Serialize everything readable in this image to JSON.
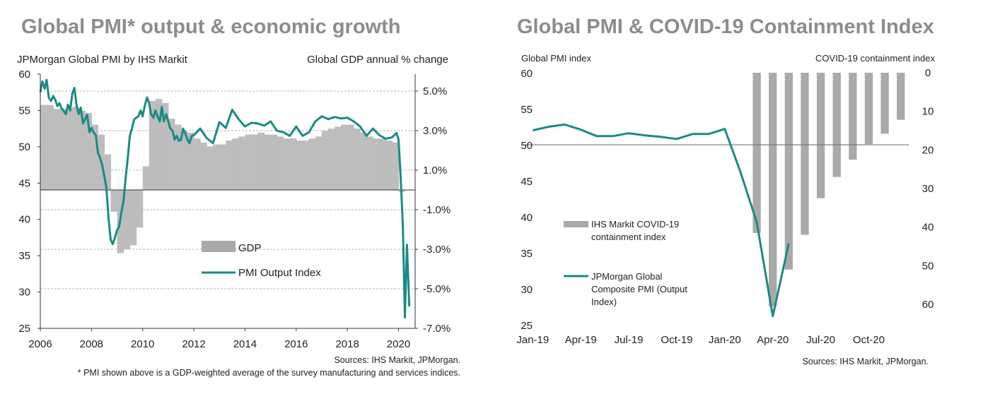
{
  "colors": {
    "pmi": "#1a8a84",
    "bars": "#bdbdbd",
    "bars_dark": "#a9a9a9",
    "title": "#8c8c8c",
    "grid": "#9a9a9a"
  },
  "chart_data": [
    {
      "type": "area",
      "title": "Global PMI* output & economic growth",
      "ylabel_left": "JPMorgan Global PMI by IHS Markit",
      "ylabel_right": "Global GDP annual % change",
      "x_ticks": [
        "2006",
        "2008",
        "2010",
        "2012",
        "2014",
        "2016",
        "2018",
        "2020"
      ],
      "y_left_ticks": [
        "60",
        "55",
        "50",
        "45",
        "40",
        "35",
        "30",
        "25"
      ],
      "y_right_ticks": [
        "5.0%",
        "3.0%",
        "1.0%",
        "-1.0%",
        "-3.0%",
        "-5.0%",
        "-7.0%"
      ],
      "ylim_left": [
        25,
        60
      ],
      "ylim_right": [
        -7.0,
        5.5
      ],
      "grid": true,
      "legend_position": "bottom-right",
      "source": "Sources: IHS Markit, JPMorgan.",
      "footnote": "* PMI shown above is a GDP-weighted average of the survey manufacturing and services indices.",
      "series": [
        {
          "name": "GDP",
          "kind": "bar",
          "x": [
            2006.0,
            2006.25,
            2006.5,
            2006.75,
            2007.0,
            2007.25,
            2007.5,
            2007.75,
            2008.0,
            2008.25,
            2008.5,
            2008.75,
            2009.0,
            2009.25,
            2009.5,
            2009.75,
            2010.0,
            2010.25,
            2010.5,
            2010.75,
            2011.0,
            2011.25,
            2011.5,
            2011.75,
            2012.0,
            2012.25,
            2012.5,
            2012.75,
            2013.0,
            2013.25,
            2013.5,
            2013.75,
            2014.0,
            2014.25,
            2014.5,
            2014.75,
            2015.0,
            2015.25,
            2015.5,
            2015.75,
            2016.0,
            2016.25,
            2016.5,
            2016.75,
            2017.0,
            2017.25,
            2017.5,
            2017.75,
            2018.0,
            2018.25,
            2018.5,
            2018.75,
            2019.0,
            2019.25,
            2019.5,
            2019.75,
            2020.0
          ],
          "values": [
            4.3,
            4.3,
            4.1,
            4.1,
            4.1,
            4.2,
            4.0,
            3.9,
            3.3,
            2.8,
            1.8,
            -1.1,
            -3.2,
            -3.0,
            -2.8,
            -1.9,
            1.2,
            4.5,
            4.6,
            4.4,
            3.6,
            3.3,
            3.0,
            2.9,
            2.6,
            2.4,
            2.2,
            2.3,
            2.3,
            2.5,
            2.6,
            2.7,
            2.8,
            2.8,
            2.9,
            2.8,
            2.8,
            2.7,
            2.6,
            2.6,
            2.5,
            2.5,
            2.6,
            2.7,
            3.0,
            3.1,
            3.2,
            3.3,
            3.3,
            3.1,
            2.9,
            2.7,
            2.6,
            2.6,
            2.5,
            2.4,
            -0.1
          ]
        },
        {
          "name": "PMI Output Index",
          "kind": "line",
          "x": [
            2006.0,
            2006.08,
            2006.17,
            2006.25,
            2006.33,
            2006.42,
            2006.5,
            2006.58,
            2006.67,
            2006.75,
            2006.83,
            2006.92,
            2007.0,
            2007.08,
            2007.17,
            2007.25,
            2007.33,
            2007.42,
            2007.5,
            2007.58,
            2007.67,
            2007.75,
            2007.83,
            2007.92,
            2008.0,
            2008.08,
            2008.17,
            2008.25,
            2008.33,
            2008.42,
            2008.5,
            2008.58,
            2008.67,
            2008.75,
            2008.83,
            2008.92,
            2009.0,
            2009.08,
            2009.17,
            2009.25,
            2009.33,
            2009.42,
            2009.5,
            2009.58,
            2009.67,
            2009.75,
            2009.83,
            2009.92,
            2010.0,
            2010.08,
            2010.17,
            2010.25,
            2010.33,
            2010.42,
            2010.5,
            2010.58,
            2010.67,
            2010.75,
            2010.83,
            2010.92,
            2011.0,
            2011.08,
            2011.17,
            2011.25,
            2011.33,
            2011.42,
            2011.5,
            2011.58,
            2011.67,
            2011.75,
            2011.83,
            2011.92,
            2012.0,
            2012.25,
            2012.5,
            2012.75,
            2013.0,
            2013.25,
            2013.5,
            2013.75,
            2014.0,
            2014.25,
            2014.5,
            2014.75,
            2015.0,
            2015.25,
            2015.5,
            2015.75,
            2016.0,
            2016.25,
            2016.5,
            2016.75,
            2017.0,
            2017.25,
            2017.5,
            2017.75,
            2018.0,
            2018.25,
            2018.5,
            2018.75,
            2019.0,
            2019.25,
            2019.5,
            2019.75,
            2019.92,
            2020.0,
            2020.08,
            2020.17,
            2020.25,
            2020.33,
            2020.42
          ],
          "values": [
            57.5,
            59.0,
            58.0,
            59.2,
            56.8,
            56.3,
            57.0,
            56.5,
            55.6,
            56.0,
            55.3,
            54.9,
            54.5,
            55.8,
            55.0,
            57.3,
            58.1,
            55.6,
            54.5,
            55.4,
            53.2,
            53.8,
            54.4,
            52.0,
            52.6,
            52.0,
            51.6,
            49.2,
            48.5,
            47.5,
            46.0,
            44.5,
            40.0,
            37.2,
            36.6,
            37.5,
            38.5,
            39.0,
            41.0,
            42.5,
            45.5,
            48.5,
            51.5,
            52.5,
            53.8,
            54.0,
            54.2,
            55.0,
            54.2,
            55.6,
            56.8,
            56.0,
            54.5,
            54.0,
            55.0,
            54.2,
            53.5,
            55.5,
            53.5,
            54.5,
            53.5,
            52.5,
            52.2,
            51.0,
            51.5,
            50.8,
            51.0,
            52.5,
            51.8,
            51.0,
            50.5,
            51.5,
            51.6,
            52.5,
            51.2,
            50.5,
            53.4,
            52.6,
            55.1,
            53.8,
            52.8,
            53.3,
            53.2,
            52.9,
            53.5,
            52.2,
            52.0,
            51.5,
            52.8,
            51.5,
            52.0,
            53.5,
            54.2,
            53.8,
            54.1,
            53.9,
            54.0,
            53.5,
            52.8,
            51.5,
            52.5,
            51.6,
            51.1,
            51.3,
            51.9,
            51.0,
            46.1,
            39.2,
            26.5,
            36.5,
            28.0
          ]
        }
      ]
    },
    {
      "type": "bar",
      "title": "Global PMI & COVID-19 Containment Index",
      "ylabel_left": "Global PMI index",
      "ylabel_right": "COVID-19 containment index",
      "x_ticks": [
        "Jan-19",
        "Apr-19",
        "Jul-19",
        "Oct-19",
        "Jan-20",
        "Apr-20",
        "Jul-20",
        "Oct-20"
      ],
      "y_left_ticks": [
        "60",
        "55",
        "50",
        "45",
        "40",
        "35",
        "30",
        "25"
      ],
      "y_right_ticks": [
        "0",
        "10",
        "20",
        "30",
        "40",
        "50",
        "60"
      ],
      "ylim_left": [
        25,
        60
      ],
      "ylim_right_inverted": [
        0,
        68.5
      ],
      "legend_position": "center-left",
      "source": "Sources: IHS Markit, JPMorgan.",
      "series": [
        {
          "name": "IHS Markit COVID-19 containment index",
          "kind": "bar",
          "x": [
            "Mar-20",
            "Apr-20",
            "May-20",
            "Jun-20",
            "Jul-20",
            "Aug-20",
            "Sep-20",
            "Oct-20",
            "Nov-20",
            "Dec-20"
          ],
          "values": [
            41.5,
            60.5,
            51.0,
            42.0,
            32.5,
            27.0,
            22.5,
            18.5,
            15.8,
            12.2
          ]
        },
        {
          "name": "JPMorgan Global Composite PMI (Output Index)",
          "kind": "line",
          "x": [
            "Jan-19",
            "Feb-19",
            "Mar-19",
            "Apr-19",
            "May-19",
            "Jun-19",
            "Jul-19",
            "Aug-19",
            "Sep-19",
            "Oct-19",
            "Nov-19",
            "Dec-19",
            "Jan-20",
            "Feb-20",
            "Mar-20",
            "Apr-20",
            "May-20"
          ],
          "values": [
            52.0,
            52.5,
            52.8,
            52.1,
            51.2,
            51.2,
            51.6,
            51.3,
            51.1,
            50.8,
            51.5,
            51.5,
            52.2,
            46.1,
            39.2,
            26.2,
            36.3
          ]
        }
      ]
    }
  ],
  "legend_labels": {
    "left_gdp": "GDP",
    "left_pmi": "PMI Output Index",
    "right_bar_line1": "IHS Markit COVID-19",
    "right_bar_line2": "containment index",
    "right_line_line1": "JPMorgan Global",
    "right_line_line2": "Composite PMI (Output",
    "right_line_line3": "Index)"
  }
}
